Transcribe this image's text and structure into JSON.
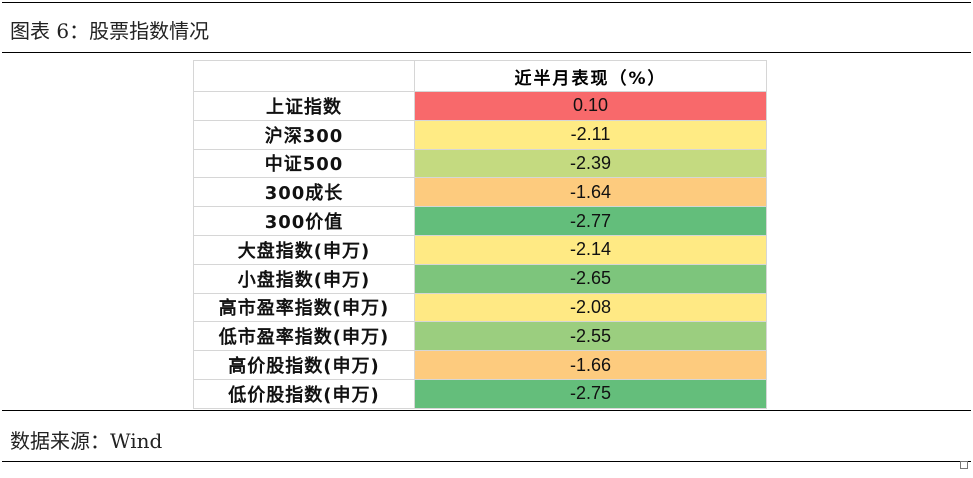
{
  "title": "图表 6：股票指数情况",
  "source": "数据来源：Wind",
  "table": {
    "header": [
      "",
      "近半月表现（%）"
    ],
    "rows": [
      {
        "name": "上证指数",
        "value": "0.10",
        "color": "#F8696B"
      },
      {
        "name": "沪深300",
        "value": "-2.11",
        "color": "#FFEB84"
      },
      {
        "name": "中证500",
        "value": "-2.39",
        "color": "#C4DA80"
      },
      {
        "name": "300成长",
        "value": "-1.64",
        "color": "#FDCB7E"
      },
      {
        "name": "300价值",
        "value": "-2.77",
        "color": "#63BE7B"
      },
      {
        "name": "大盘指数(申万)",
        "value": "-2.14",
        "color": "#FFEA84"
      },
      {
        "name": "小盘指数(申万)",
        "value": "-2.65",
        "color": "#7DC57C"
      },
      {
        "name": "高市盈率指数(申万)",
        "value": "-2.08",
        "color": "#FFE984"
      },
      {
        "name": "低市盈率指数(申万)",
        "value": "-2.55",
        "color": "#9BCE7F"
      },
      {
        "name": "高价股指数(申万)",
        "value": "-1.66",
        "color": "#FDCB7E"
      },
      {
        "name": "低价股指数(申万)",
        "value": "-2.75",
        "color": "#64BE7B"
      }
    ]
  }
}
